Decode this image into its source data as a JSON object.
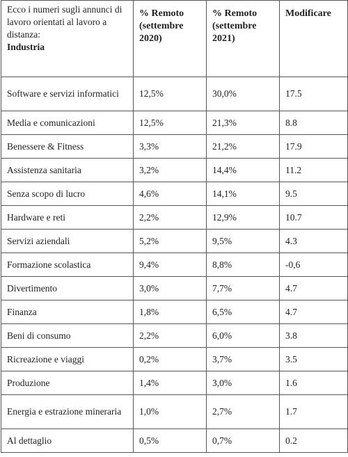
{
  "table": {
    "header": {
      "intro": "Ecco i numeri sugli annunci di lavoro orientati al lavoro a distanza:",
      "label": "Industria",
      "columns": [
        "% Remoto (settembre 2020)",
        "% Remoto (settembre 2021)",
        "Modificare"
      ]
    },
    "rows": [
      [
        "Software e servizi informatici",
        "12,5%",
        "30,0%",
        "17.5"
      ],
      [
        "Media e comunicazioni",
        "12,5%",
        "21,3%",
        "8.8"
      ],
      [
        "Benessere & Fitness",
        "3,3%",
        "21,2%",
        "17.9"
      ],
      [
        "Assistenza sanitaria",
        "3,2%",
        "14,4%",
        "11.2"
      ],
      [
        "Senza scopo di lucro",
        "4,6%",
        "14,1%",
        "9.5"
      ],
      [
        "Hardware e reti",
        "2,2%",
        "12,9%",
        "10.7"
      ],
      [
        "Servizi aziendali",
        "5,2%",
        "9,5%",
        "4.3"
      ],
      [
        "Formazione scolastica",
        "9,4%",
        "8,8%",
        "-0,6"
      ],
      [
        "Divertimento",
        "3,0%",
        "7,7%",
        "4.7"
      ],
      [
        "Finanza",
        "1,8%",
        "6,5%",
        "4.7"
      ],
      [
        "Beni di consumo",
        "2,2%",
        "6,0%",
        "3.8"
      ],
      [
        "Ricreazione e viaggi",
        "0,2%",
        "3,7%",
        "3.5"
      ],
      [
        "Produzione",
        "1,4%",
        "3,0%",
        "1.6"
      ],
      [
        "Energia e estrazione mineraria",
        "1,0%",
        "2,7%",
        "1.7"
      ],
      [
        "Al dettaglio",
        "0,5%",
        "0,7%",
        "0.2"
      ]
    ]
  }
}
